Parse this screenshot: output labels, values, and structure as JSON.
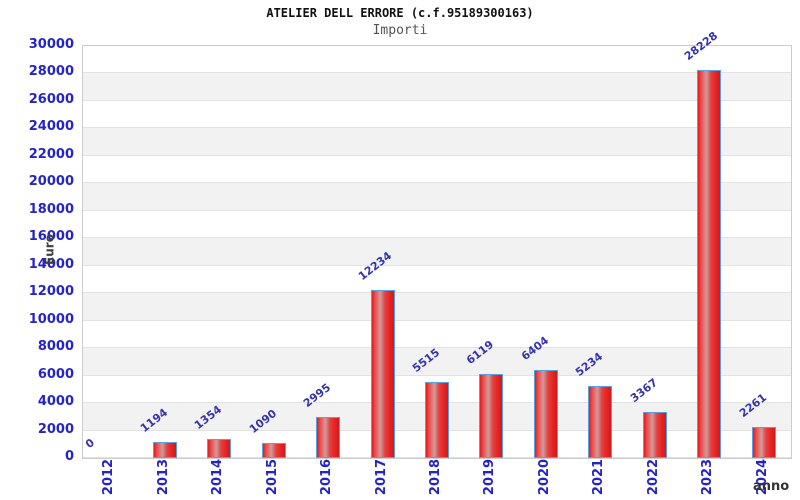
{
  "chart_data": {
    "type": "bar",
    "title": "ATELIER DELL ERRORE (c.f.95189300163)",
    "subtitle": "Importi",
    "categories": [
      "2012",
      "2013",
      "2014",
      "2015",
      "2016",
      "2017",
      "2018",
      "2019",
      "2020",
      "2021",
      "2022",
      "2023",
      "2024"
    ],
    "values": [
      0,
      1194,
      1354,
      1090,
      2995,
      12234,
      5515,
      6119,
      6404,
      5234,
      3367,
      28228,
      2261
    ],
    "xlabel": "anno",
    "ylabel": "Euro",
    "ylim": [
      0,
      30000
    ],
    "ytick_step": 2000,
    "yticks": [
      0,
      2000,
      4000,
      6000,
      8000,
      10000,
      12000,
      14000,
      16000,
      18000,
      20000,
      22000,
      24000,
      26000,
      28000,
      30000
    ],
    "grid": "horizontal bands alternating",
    "legend": "none",
    "colors": {
      "bar_fill": "#e02020",
      "bar_highlight": "#cf9b9b",
      "bar_border": "#58a0e0",
      "tick_label": "#2424c8",
      "value_label": "#3434ae",
      "band_gray": "#f2f2f2",
      "gridline": "#e2e2e2",
      "plot_border": "#cccccc",
      "title": "#111111",
      "subtitle": "#555555",
      "axis_title": "#404040"
    }
  }
}
